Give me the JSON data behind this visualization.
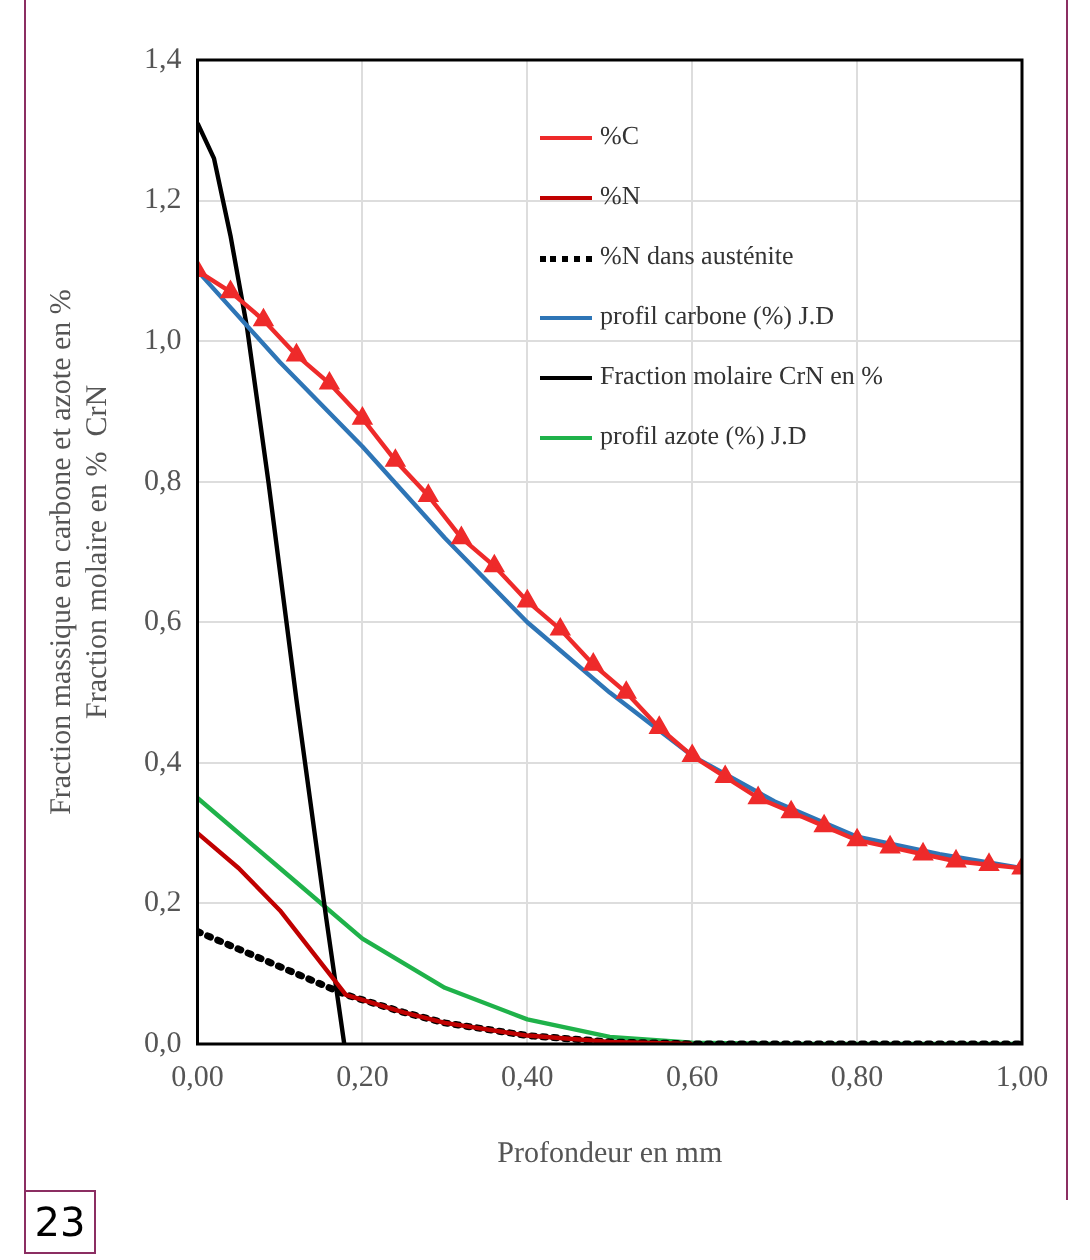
{
  "chart_data": {
    "type": "line",
    "xlabel": "Profondeur en mm",
    "ylabel": "Fraction massique en carbone et azote en %\nFraction molaire en %  CrN",
    "annotations": [
      "23"
    ],
    "xlim": [
      0,
      1
    ],
    "ylim": [
      0,
      1.4
    ],
    "xticks": [
      {
        "value": 0,
        "label": "0,00"
      },
      {
        "value": 0.2,
        "label": "0,20"
      },
      {
        "value": 0.4,
        "label": "0,40"
      },
      {
        "value": 0.6,
        "label": "0,60"
      },
      {
        "value": 0.8,
        "label": "0,80"
      },
      {
        "value": 1,
        "label": "1,00"
      }
    ],
    "yticks": [
      {
        "value": 0,
        "label": "0,0"
      },
      {
        "value": 0.2,
        "label": "0,2"
      },
      {
        "value": 0.4,
        "label": "0,4"
      },
      {
        "value": 0.6,
        "label": "0,6"
      },
      {
        "value": 0.8,
        "label": "0,8"
      },
      {
        "value": 1,
        "label": "1,0"
      },
      {
        "value": 1.2,
        "label": "1,2"
      },
      {
        "value": 1.4,
        "label": "1,4"
      }
    ],
    "grid": true,
    "legend": "top right",
    "series": [
      {
        "name": "%C",
        "color": "#ee2a2a",
        "marker": "triangle",
        "x": [
          0,
          0.04,
          0.08,
          0.12,
          0.16,
          0.2,
          0.24,
          0.28,
          0.32,
          0.36,
          0.4,
          0.44,
          0.48,
          0.52,
          0.56,
          0.6,
          0.64,
          0.68,
          0.72,
          0.76,
          0.8,
          0.84,
          0.88,
          0.92,
          0.96,
          1
        ],
        "values": [
          1.1,
          1.07,
          1.03,
          0.98,
          0.94,
          0.89,
          0.83,
          0.78,
          0.72,
          0.68,
          0.63,
          0.59,
          0.54,
          0.5,
          0.45,
          0.41,
          0.38,
          0.35,
          0.33,
          0.31,
          0.29,
          0.28,
          0.27,
          0.26,
          0.255,
          0.25
        ]
      },
      {
        "name": "%N",
        "color": "#c00000",
        "x": [
          0,
          0.05,
          0.1,
          0.14,
          0.18,
          0.25,
          0.3,
          0.4,
          0.5,
          0.6
        ],
        "values": [
          0.3,
          0.25,
          0.19,
          0.13,
          0.07,
          0.045,
          0.03,
          0.012,
          0.003,
          0
        ]
      },
      {
        "name": "%N dans austénite",
        "color": "#000000",
        "line_style": "dotted",
        "x": [
          0,
          0.05,
          0.1,
          0.14,
          0.18,
          0.25,
          0.3,
          0.4,
          0.5,
          0.6,
          1
        ],
        "values": [
          0.16,
          0.135,
          0.11,
          0.09,
          0.07,
          0.045,
          0.03,
          0.012,
          0.003,
          0,
          0
        ]
      },
      {
        "name": "profil carbone (%) J.D",
        "color": "#2e75b6",
        "x": [
          0,
          0.1,
          0.2,
          0.3,
          0.4,
          0.5,
          0.6,
          0.7,
          0.8,
          0.9,
          1
        ],
        "values": [
          1.1,
          0.97,
          0.85,
          0.72,
          0.6,
          0.5,
          0.41,
          0.345,
          0.295,
          0.27,
          0.25
        ]
      },
      {
        "name": "Fraction molaire  CrN en %",
        "color": "#000000",
        "x": [
          0,
          0.02,
          0.04,
          0.06,
          0.086,
          0.12,
          0.156,
          0.178
        ],
        "values": [
          1.31,
          1.26,
          1.15,
          1.02,
          0.8,
          0.49,
          0.18,
          0
        ]
      },
      {
        "name": "profil azote (%) J.D",
        "color": "#1fb24a",
        "x": [
          0,
          0.1,
          0.2,
          0.3,
          0.4,
          0.5,
          0.6,
          0.7,
          1
        ],
        "values": [
          0.35,
          0.25,
          0.15,
          0.08,
          0.035,
          0.01,
          0.002,
          0,
          0
        ]
      }
    ]
  }
}
